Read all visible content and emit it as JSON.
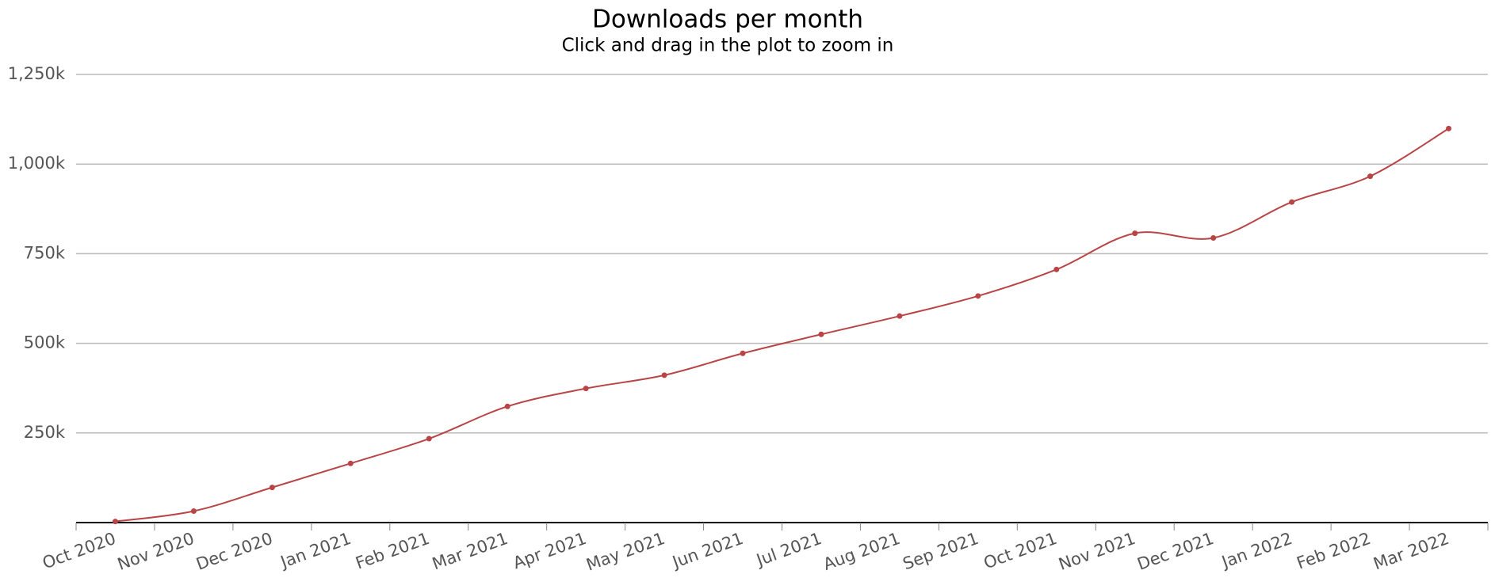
{
  "chart_data": {
    "type": "line",
    "title": "Downloads per month",
    "subtitle": "Click and drag in the plot to zoom in",
    "categories": [
      "Oct 2020",
      "Nov 2020",
      "Dec 2020",
      "Jan 2021",
      "Feb 2021",
      "Mar 2021",
      "Apr 2021",
      "May 2021",
      "Jun 2021",
      "Jul 2021",
      "Aug 2021",
      "Sep 2021",
      "Oct 2021",
      "Nov 2021",
      "Dec 2021",
      "Jan 2022",
      "Feb 2022",
      "Mar 2022"
    ],
    "values": [
      3000,
      32000,
      98000,
      165000,
      234000,
      324000,
      374000,
      411000,
      472000,
      525000,
      576000,
      632000,
      706000,
      807000,
      794000,
      894000,
      966000,
      1099000
    ],
    "color": "#b94446",
    "ylim": [
      0,
      1250000
    ],
    "yticks": [
      {
        "value": 250000,
        "label": "250k"
      },
      {
        "value": 500000,
        "label": "500k"
      },
      {
        "value": 750000,
        "label": "750k"
      },
      {
        "value": 1000000,
        "label": "1,000k"
      },
      {
        "value": 1250000,
        "label": "1,250k"
      }
    ],
    "grid": true
  }
}
